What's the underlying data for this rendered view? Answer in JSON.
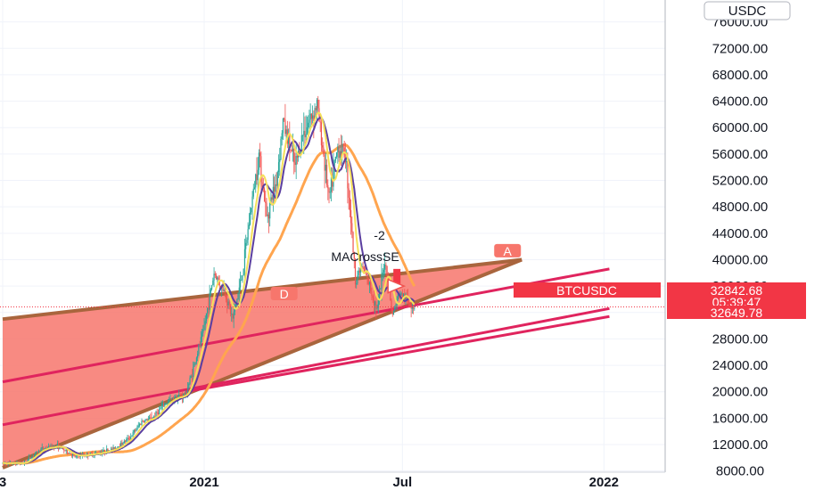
{
  "chart_data": {
    "type": "candlestick",
    "symbol": "BTCUSDC",
    "currency_label": "USDC",
    "y_ticks": [
      8000,
      12000,
      16000,
      20000,
      24000,
      28000,
      32000,
      36000,
      40000,
      44000,
      48000,
      52000,
      56000,
      60000,
      64000,
      68000,
      72000,
      76000
    ],
    "y_tick_labels": [
      "8000.00",
      "12000.00",
      "16000.00",
      "20000.00",
      "24000.00",
      "28000.00",
      "",
      "36000.00",
      "40000.00",
      "44000.00",
      "48000.00",
      "52000.00",
      "56000.00",
      "60000.00",
      "64000.00",
      "68000.00",
      "72000.00",
      "76000.00"
    ],
    "ylim": [
      6000,
      77000
    ],
    "x_labels": [
      {
        "label": "3",
        "date": "2020-07-01"
      },
      {
        "label": "2021",
        "date": "2021-01-01"
      },
      {
        "label": "Jul",
        "date": "2021-07-01"
      },
      {
        "label": "2022",
        "date": "2022-01-01"
      }
    ],
    "xlim": [
      "2020-07-01",
      "2022-01-06"
    ],
    "last_price": {
      "value": 32842.68,
      "label": "32842.68",
      "countdown": "05:39:47"
    },
    "other_price": {
      "value": 32649.78,
      "label": "32649.78"
    },
    "colors": {
      "up": "#26a69a",
      "down": "#ef5350",
      "pattern_fill": "#f7766c",
      "pattern_edge": "#a9653d",
      "trendline": "#e0245e",
      "ma_slow": "#ffa54f",
      "ma_fast_purple": "#5b3fa0",
      "ma_fast_yellow": "#f5e05a",
      "tag_red": "#f23645",
      "label_salmon": "#f7766c"
    },
    "series": [
      {
        "name": "BTCUSDC",
        "close_points": [
          [
            "2020-07-01",
            9150
          ],
          [
            "2020-07-20",
            9200
          ],
          [
            "2020-08-05",
            11300
          ],
          [
            "2020-08-20",
            11800
          ],
          [
            "2020-09-05",
            10200
          ],
          [
            "2020-09-25",
            10700
          ],
          [
            "2020-10-10",
            11300
          ],
          [
            "2020-10-25",
            13000
          ],
          [
            "2020-11-05",
            15500
          ],
          [
            "2020-11-15",
            16000
          ],
          [
            "2020-11-25",
            18000
          ],
          [
            "2020-12-05",
            19200
          ],
          [
            "2020-12-15",
            19500
          ],
          [
            "2020-12-22",
            23500
          ],
          [
            "2020-12-31",
            29000
          ],
          [
            "2021-01-05",
            33500
          ],
          [
            "2021-01-10",
            38000
          ],
          [
            "2021-01-20",
            35000
          ],
          [
            "2021-01-27",
            31000
          ],
          [
            "2021-02-05",
            38000
          ],
          [
            "2021-02-12",
            47000
          ],
          [
            "2021-02-20",
            56000
          ],
          [
            "2021-02-27",
            46500
          ],
          [
            "2021-03-08",
            52000
          ],
          [
            "2021-03-14",
            61000
          ],
          [
            "2021-03-25",
            54000
          ],
          [
            "2021-04-01",
            59000
          ],
          [
            "2021-04-14",
            63500
          ],
          [
            "2021-04-20",
            56000
          ],
          [
            "2021-04-25",
            49000
          ],
          [
            "2021-05-03",
            57000
          ],
          [
            "2021-05-10",
            56000
          ],
          [
            "2021-05-15",
            46000
          ],
          [
            "2021-05-19",
            37000
          ],
          [
            "2021-05-25",
            39000
          ],
          [
            "2021-06-01",
            36000
          ],
          [
            "2021-06-08",
            32500
          ],
          [
            "2021-06-15",
            40000
          ],
          [
            "2021-06-22",
            31500
          ],
          [
            "2021-06-28",
            35000
          ],
          [
            "2021-07-05",
            33800
          ],
          [
            "2021-07-12",
            32843
          ]
        ]
      }
    ],
    "annotations": [
      {
        "text": "-2",
        "kind": "text"
      },
      {
        "text": "MACrossSE",
        "kind": "text"
      },
      {
        "text": "A",
        "kind": "point-label"
      },
      {
        "text": "D",
        "kind": "point-label"
      }
    ]
  }
}
